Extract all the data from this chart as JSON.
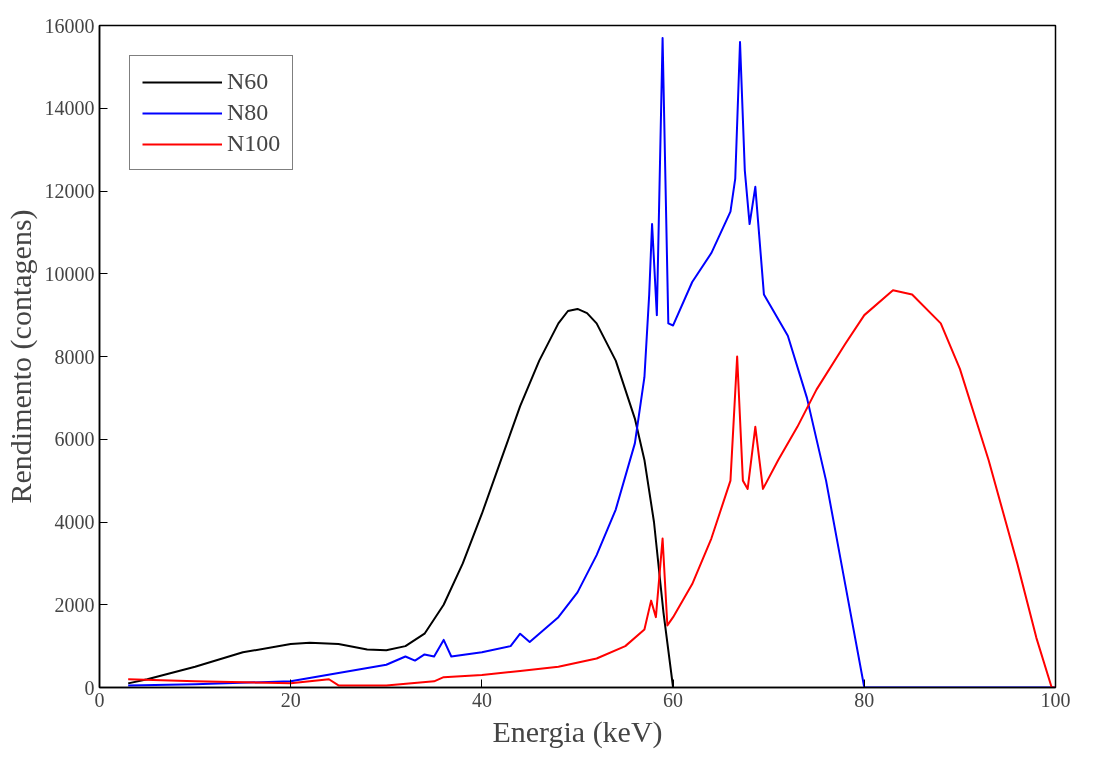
{
  "chart_data": {
    "type": "line",
    "xlabel": "Energia (keV)",
    "ylabel": "Rendimento (contagens)",
    "xlim": [
      0,
      100
    ],
    "ylim": [
      0,
      16000
    ],
    "xticks": [
      0,
      20,
      40,
      60,
      80,
      100
    ],
    "yticks": [
      0,
      2000,
      4000,
      6000,
      8000,
      10000,
      12000,
      14000,
      16000
    ],
    "grid": false,
    "legend": "top left",
    "marker": "none",
    "line_style": "solid",
    "series": [
      {
        "name": "N60",
        "color": "#000000",
        "x": [
          3,
          5,
          10,
          15,
          20,
          22,
          25,
          28,
          30,
          32,
          34,
          36,
          38,
          40,
          42,
          44,
          46,
          48,
          49,
          50,
          51,
          52,
          54,
          56,
          57,
          58,
          59,
          60
        ],
        "values": [
          100,
          200,
          500,
          850,
          1050,
          1080,
          1050,
          920,
          900,
          1000,
          1300,
          2000,
          3000,
          4200,
          5500,
          6800,
          7900,
          8800,
          9100,
          9150,
          9050,
          8800,
          7900,
          6500,
          5500,
          4000,
          1800,
          0
        ]
      },
      {
        "name": "N80",
        "color": "#0000ff",
        "x": [
          3,
          10,
          20,
          25,
          30,
          32,
          33,
          34,
          35,
          36,
          36.8,
          40,
          43,
          44,
          45,
          48,
          50,
          52,
          54,
          56,
          57,
          57.5,
          57.8,
          58.3,
          58.9,
          59.5,
          60,
          62,
          64,
          66,
          66.5,
          67,
          67.5,
          68,
          68.6,
          69.5,
          72,
          74,
          76,
          78,
          80,
          100
        ],
        "values": [
          50,
          80,
          150,
          350,
          550,
          750,
          650,
          800,
          750,
          1150,
          750,
          850,
          1000,
          1300,
          1100,
          1700,
          2300,
          3200,
          4300,
          5900,
          7500,
          9500,
          11200,
          9000,
          15700,
          8800,
          8750,
          9800,
          10500,
          11500,
          12300,
          15600,
          12500,
          11200,
          12100,
          9500,
          8500,
          7000,
          5000,
          2500,
          0,
          0
        ]
      },
      {
        "name": "N100",
        "color": "#ff0000",
        "x": [
          3,
          10,
          20,
          22,
          24,
          25,
          30,
          35,
          36,
          40,
          44,
          48,
          52,
          55,
          57,
          57.7,
          58.2,
          58.9,
          59.4,
          60,
          62,
          64,
          66,
          66.7,
          67.3,
          67.8,
          68.6,
          69.4,
          71,
          73,
          75,
          78,
          80,
          83,
          85,
          88,
          90,
          93,
          96,
          98,
          99.6,
          100
        ],
        "values": [
          200,
          150,
          100,
          150,
          200,
          50,
          50,
          150,
          250,
          300,
          400,
          500,
          700,
          1000,
          1400,
          2100,
          1700,
          3600,
          1500,
          1700,
          2500,
          3600,
          5000,
          8000,
          5000,
          4800,
          6300,
          4800,
          5500,
          6300,
          7200,
          8300,
          9000,
          9600,
          9500,
          8800,
          7700,
          5500,
          3000,
          1200,
          0,
          0
        ]
      }
    ]
  }
}
